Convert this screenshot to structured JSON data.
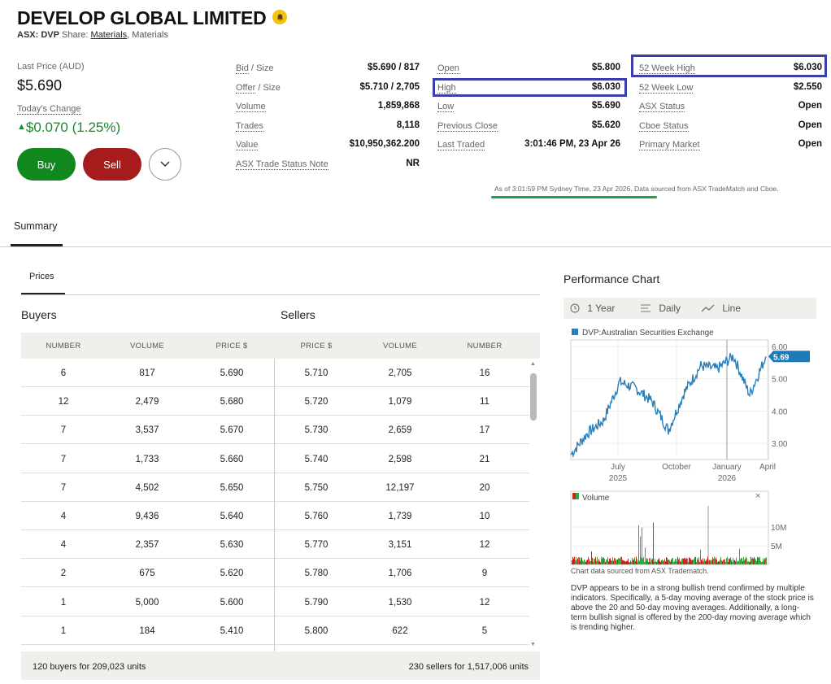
{
  "header": {
    "company": "DEVELOP GLOBAL LIMITED",
    "exchange_ticker": "ASX: DVP",
    "share_label": "Share:",
    "sector": "Materials",
    "industry": ", Materials"
  },
  "quote": {
    "last_price_label": "Last Price (AUD)",
    "last_price": "$5.690",
    "todays_change_label": "Today's Change",
    "todays_change": "$0.070 (1.25%)"
  },
  "actions": {
    "buy": "Buy",
    "sell": "Sell"
  },
  "stats": {
    "col1": [
      {
        "label": "Bid",
        "label2": " / Size",
        "value": "$5.690 / 817"
      },
      {
        "label": "Offer",
        "label2": " / Size",
        "value": "$5.710 / 2,705"
      },
      {
        "label": "Volume",
        "label2": "",
        "value": "1,859,868"
      },
      {
        "label": "Trades",
        "label2": "",
        "value": "8,118"
      },
      {
        "label": "Value",
        "label2": "",
        "value": "$10,950,362.200"
      },
      {
        "label": "ASX Trade Status Note",
        "label2": "",
        "value": "NR"
      }
    ],
    "col2": [
      {
        "label": "Open",
        "value": "$5.800"
      },
      {
        "label": "High",
        "value": "$6.030"
      },
      {
        "label": "Low",
        "value": "$5.690"
      },
      {
        "label": "Previous Close",
        "value": "$5.620"
      },
      {
        "label": "Last Traded",
        "value": "3:01:46 PM, 23 Apr 26"
      }
    ],
    "col3": [
      {
        "label": "52 Week High",
        "value": "$6.030"
      },
      {
        "label": "52 Week Low",
        "value": "$2.550"
      },
      {
        "label": "ASX Status",
        "value": "Open"
      },
      {
        "label": "Cboe Status",
        "value": "Open"
      },
      {
        "label": "Primary Market",
        "value": "Open"
      }
    ],
    "as_of": "As of 3:01:59 PM Sydney Time, 23 Apr 2026, Data sourced from ASX TradeMatch and Cboe."
  },
  "tabs": {
    "summary": "Summary",
    "prices": "Prices"
  },
  "orderbook": {
    "buyers_title": "Buyers",
    "sellers_title": "Sellers",
    "columns": [
      "NUMBER",
      "VOLUME",
      "PRICE $",
      "PRICE $",
      "VOLUME",
      "NUMBER"
    ],
    "rows": [
      [
        "6",
        "817",
        "5.690",
        "5.710",
        "2,705",
        "16"
      ],
      [
        "12",
        "2,479",
        "5.680",
        "5.720",
        "1,079",
        "11"
      ],
      [
        "7",
        "3,537",
        "5.670",
        "5.730",
        "2,659",
        "17"
      ],
      [
        "7",
        "1,733",
        "5.660",
        "5.740",
        "2,598",
        "21"
      ],
      [
        "7",
        "4,502",
        "5.650",
        "5.750",
        "12,197",
        "20"
      ],
      [
        "4",
        "9,436",
        "5.640",
        "5.760",
        "1,739",
        "10"
      ],
      [
        "4",
        "2,357",
        "5.630",
        "5.770",
        "3,151",
        "12"
      ],
      [
        "2",
        "675",
        "5.620",
        "5.780",
        "1,706",
        "9"
      ],
      [
        "1",
        "5,000",
        "5.600",
        "5.790",
        "1,530",
        "12"
      ],
      [
        "1",
        "184",
        "5.410",
        "5.800",
        "622",
        "5"
      ]
    ],
    "buyers_total": "120 buyers for 209,023 units",
    "sellers_total": "230 sellers for 1,517,006 units"
  },
  "performance": {
    "title": "Performance Chart",
    "period": "1 Year",
    "interval": "Daily",
    "style": "Line",
    "legend": "DVP:Australian Securities Exchange",
    "current_label": "5.69",
    "volume_legend": "Volume",
    "note": "Chart data sourced from ASX Tradematch.",
    "analysis": "DVP appears to be in a strong bullish trend confirmed by multiple indicators. Specifically, a 5-day moving average of the stock price is above the 20 and 50-day moving averages. Additionally, a long-term bullish signal is offered by the 200-day moving average which is trending higher."
  },
  "chart_data": {
    "type": "line",
    "x": [
      "2025-04",
      "2025-05",
      "2025-06",
      "2025-07",
      "2025-08",
      "2025-09",
      "2025-10",
      "2025-11",
      "2025-12",
      "2026-01",
      "2026-02",
      "2026-03",
      "2026-04"
    ],
    "series": [
      {
        "values": [
          2.65,
          3.3,
          3.7,
          4.9,
          4.7,
          4.3,
          3.4,
          4.6,
          5.4,
          5.3,
          5.7,
          4.5,
          5.69
        ]
      }
    ],
    "ylim": [
      2.5,
      6.2
    ],
    "yticks": [
      "6.00",
      "5.00",
      "4.00",
      "3.00"
    ],
    "xticks": [
      "July",
      "October",
      "January",
      "April"
    ],
    "xticks_sub": [
      "2025",
      "",
      "2026",
      ""
    ],
    "volume_yticks": [
      "10M",
      "5M"
    ],
    "colors": {
      "line": "#2b7fb8",
      "label_bg": "#1f7ab8",
      "vol_up": "#2bb03b",
      "vol_down": "#d0231c"
    }
  },
  "colors": {
    "buy": "#10881d",
    "sell": "#a61b1b",
    "highlight": "#3b3fa8",
    "positive": "#1a8a2e"
  }
}
